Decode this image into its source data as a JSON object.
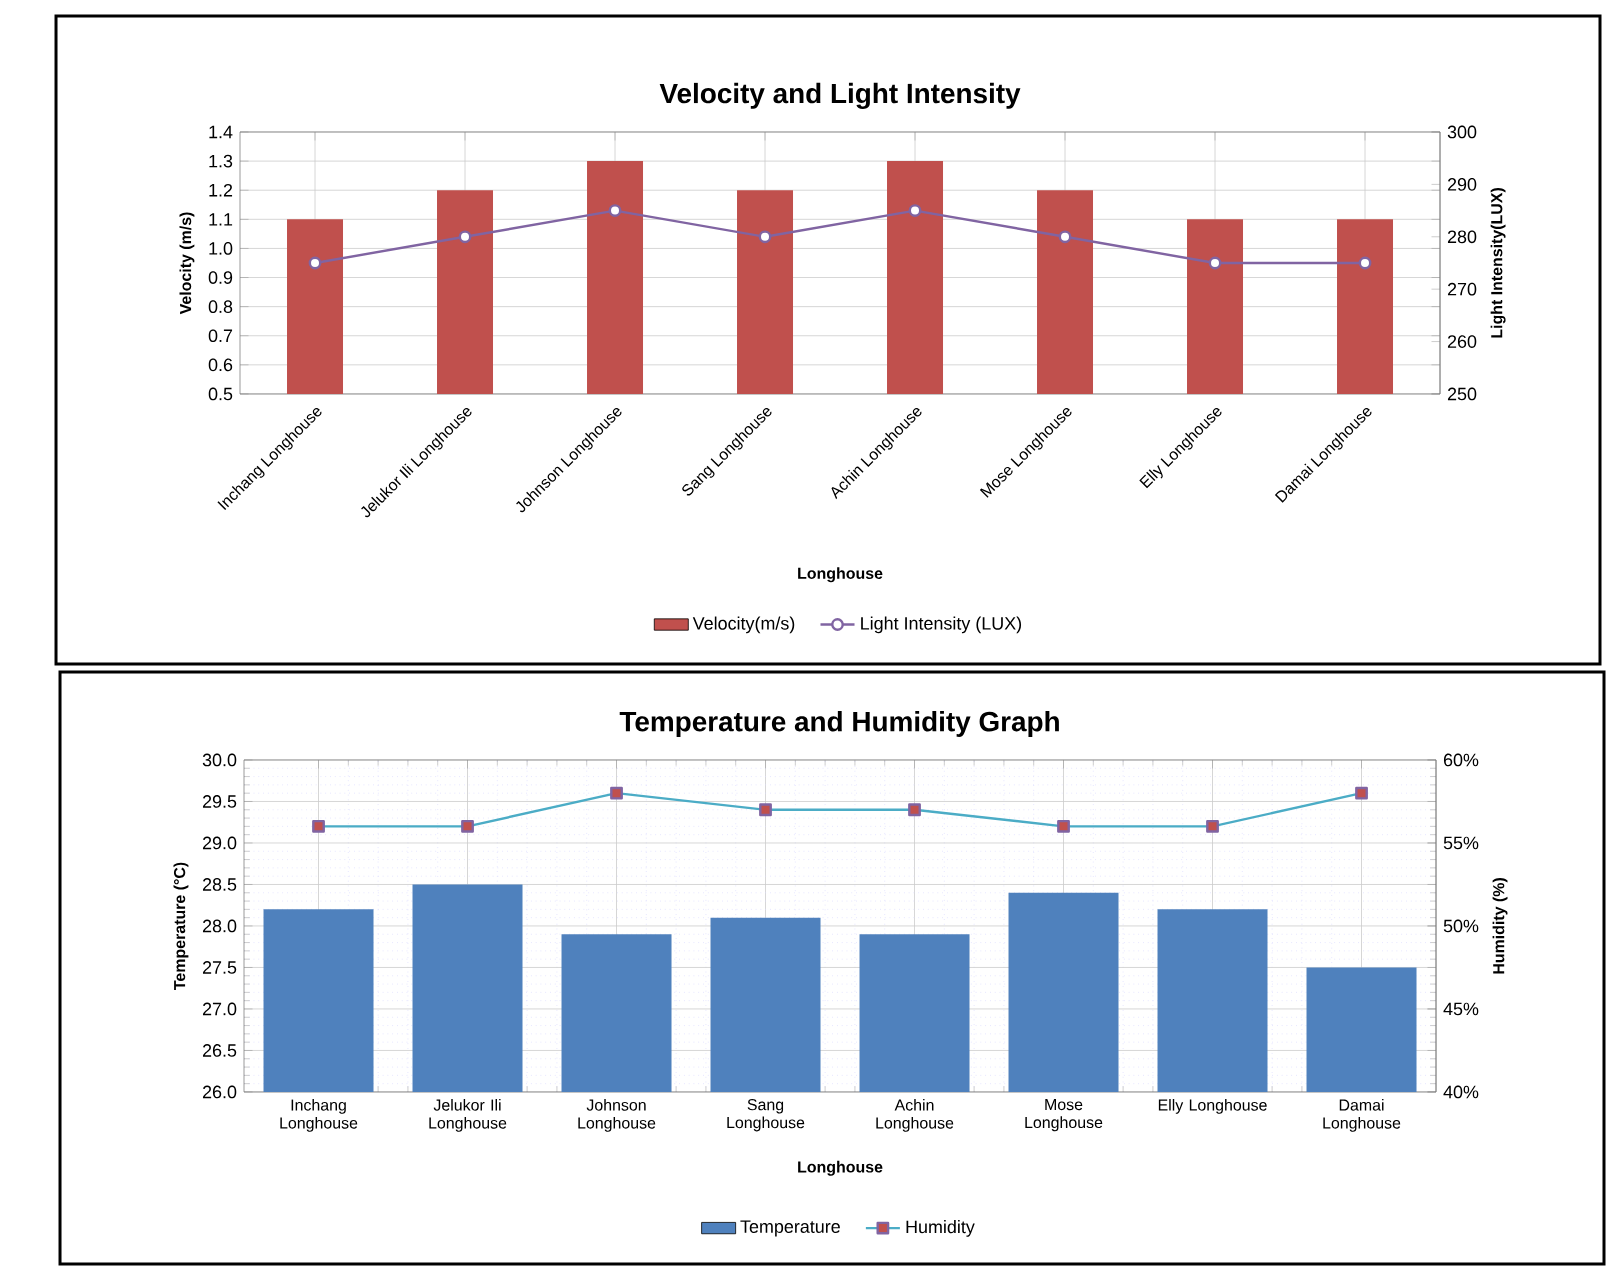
{
  "chart_data": [
    {
      "type": "bar",
      "title": "Velocity and Light Intensity",
      "xlabel": "Longhouse",
      "ylabel": "Velocity (m/s)",
      "y2label": "Light Intensity(LUX)",
      "categories": [
        "Inchang Longhouse",
        "Jelukor Ili Longhouse",
        "Johnson Longhouse",
        "Sang Longhouse",
        "Achin Longhouse",
        "Mose Longhouse",
        "Elly Longhouse",
        "Damai Longhouse"
      ],
      "series": [
        {
          "name": "Velocity(m/s)",
          "color": "#c0504d",
          "values": [
            1.1,
            1.2,
            1.3,
            1.2,
            1.3,
            1.2,
            1.1,
            1.1
          ]
        },
        {
          "name": "Light Intensity (LUX)",
          "type": "line",
          "axis": "y2",
          "color": "#8064a2",
          "marker": "circle",
          "values": [
            275,
            280,
            285,
            280,
            285,
            280,
            275,
            275
          ]
        }
      ],
      "ylim": [
        0.5,
        1.4
      ],
      "yticks": [
        {
          "value": 0.5,
          "label": "0.5"
        },
        {
          "value": 0.6,
          "label": "0.6"
        },
        {
          "value": 0.7,
          "label": "0.7"
        },
        {
          "value": 0.8,
          "label": "0.8"
        },
        {
          "value": 0.9,
          "label": "0.9"
        },
        {
          "value": 1.0,
          "label": "1.0"
        },
        {
          "value": 1.1,
          "label": "1.1"
        },
        {
          "value": 1.2,
          "label": "1.2"
        },
        {
          "value": 1.3,
          "label": "1.3"
        },
        {
          "value": 1.4,
          "label": "1.4"
        }
      ],
      "y2lim": [
        250,
        300
      ],
      "y2ticks": [
        250,
        260,
        270,
        280,
        290,
        300
      ],
      "grid": true,
      "legend": "bottom"
    },
    {
      "type": "bar",
      "title": "Temperature and Humidity Graph",
      "xlabel": "Longhouse",
      "ylabel": "Temperature (°C)",
      "y2label": "Humidity (%)",
      "categories": [
        "Inchang Longhouse",
        "Jelukor Ili Longhouse",
        "Johnson Longhouse",
        "Sang Longhouse",
        "Achin Longhouse",
        "Mose Longhouse",
        "Elly Longhouse",
        "Damai Longhouse"
      ],
      "series": [
        {
          "name": "Temperature",
          "color": "#4f81bd",
          "values": [
            28.2,
            28.5,
            27.9,
            28.1,
            27.9,
            28.4,
            28.2,
            27.5
          ]
        },
        {
          "name": "Humidity",
          "type": "line",
          "axis": "y2",
          "color": "#4bacc6",
          "marker": "square",
          "values": [
            56,
            56,
            58,
            57,
            57,
            56,
            56,
            58
          ]
        }
      ],
      "ylim": [
        26,
        30
      ],
      "yticks": [
        {
          "value": 26,
          "label": "26.0"
        },
        {
          "value": 26.5,
          "label": "26.5"
        },
        {
          "value": 27,
          "label": "27.0"
        },
        {
          "value": 27.5,
          "label": "27.5"
        },
        {
          "value": 28,
          "label": "28.0"
        },
        {
          "value": 28.5,
          "label": "28.5"
        },
        {
          "value": 29,
          "label": "29.0"
        },
        {
          "value": 29.5,
          "label": "29.5"
        },
        {
          "value": 30,
          "label": "30.0"
        }
      ],
      "y2lim": [
        40,
        60
      ],
      "y2ticks": [
        {
          "value": 40,
          "label": "40%"
        },
        {
          "value": 45,
          "label": "45%"
        },
        {
          "value": 50,
          "label": "50%"
        },
        {
          "value": 55,
          "label": "55%"
        },
        {
          "value": 60,
          "label": "60%"
        }
      ],
      "grid": true,
      "legend": "bottom"
    }
  ]
}
